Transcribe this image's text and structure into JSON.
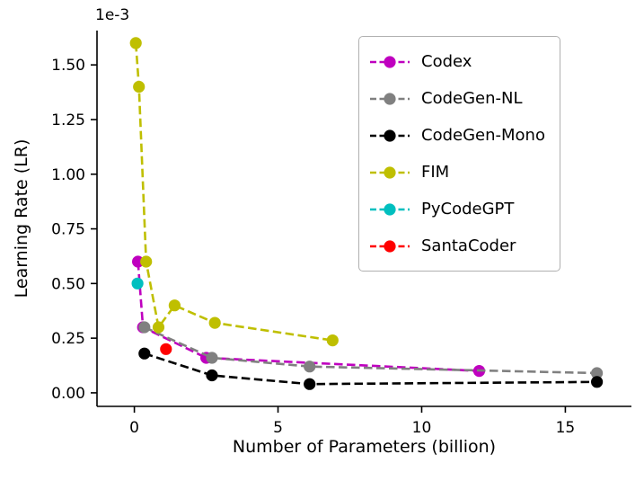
{
  "chart_data": {
    "type": "line",
    "title": "",
    "xlabel": "Number of Parameters (billion)",
    "ylabel": "Learning Rate (LR)",
    "y_offset_label": "1e-3",
    "y_units_multiplier": "1e-3",
    "grid": false,
    "legend_position": "upper right",
    "xlim": [
      -1.3,
      17.3
    ],
    "ylim": [
      -0.062,
      1.657
    ],
    "xticks": [
      0,
      5,
      10,
      15
    ],
    "xtick_labels": [
      "0",
      "5",
      "10",
      "15"
    ],
    "yticks": [
      0,
      0.25,
      0.5,
      0.75,
      1.0,
      1.25,
      1.5
    ],
    "ytick_labels": [
      "0.00",
      "0.25",
      "0.50",
      "0.75",
      "1.00",
      "1.25",
      "1.50"
    ],
    "line_style": "dashed",
    "marker": "circle",
    "series": [
      {
        "name": "Codex",
        "color": "#BF00BF",
        "x": [
          0.125,
          0.3,
          2.5,
          12
        ],
        "y": [
          0.6,
          0.3,
          0.16,
          0.1
        ]
      },
      {
        "name": "CodeGen-NL",
        "color": "#808080",
        "x": [
          0.35,
          2.7,
          6.1,
          16.1
        ],
        "y": [
          0.3,
          0.16,
          0.12,
          0.09
        ]
      },
      {
        "name": "CodeGen-Mono",
        "color": "#000000",
        "x": [
          0.35,
          2.7,
          6.1,
          16.1
        ],
        "y": [
          0.18,
          0.08,
          0.04,
          0.05
        ]
      },
      {
        "name": "FIM",
        "color": "#BFBF00",
        "x": [
          0.05,
          0.16,
          0.41,
          0.84,
          1.4,
          2.8,
          6.9
        ],
        "y": [
          1.6,
          1.4,
          0.6,
          0.3,
          0.4,
          0.32,
          0.24
        ]
      },
      {
        "name": "PyCodeGPT",
        "color": "#00BFBF",
        "x": [
          0.11
        ],
        "y": [
          0.5
        ]
      },
      {
        "name": "SantaCoder",
        "color": "#FF0000",
        "x": [
          1.1
        ],
        "y": [
          0.2
        ]
      }
    ]
  }
}
